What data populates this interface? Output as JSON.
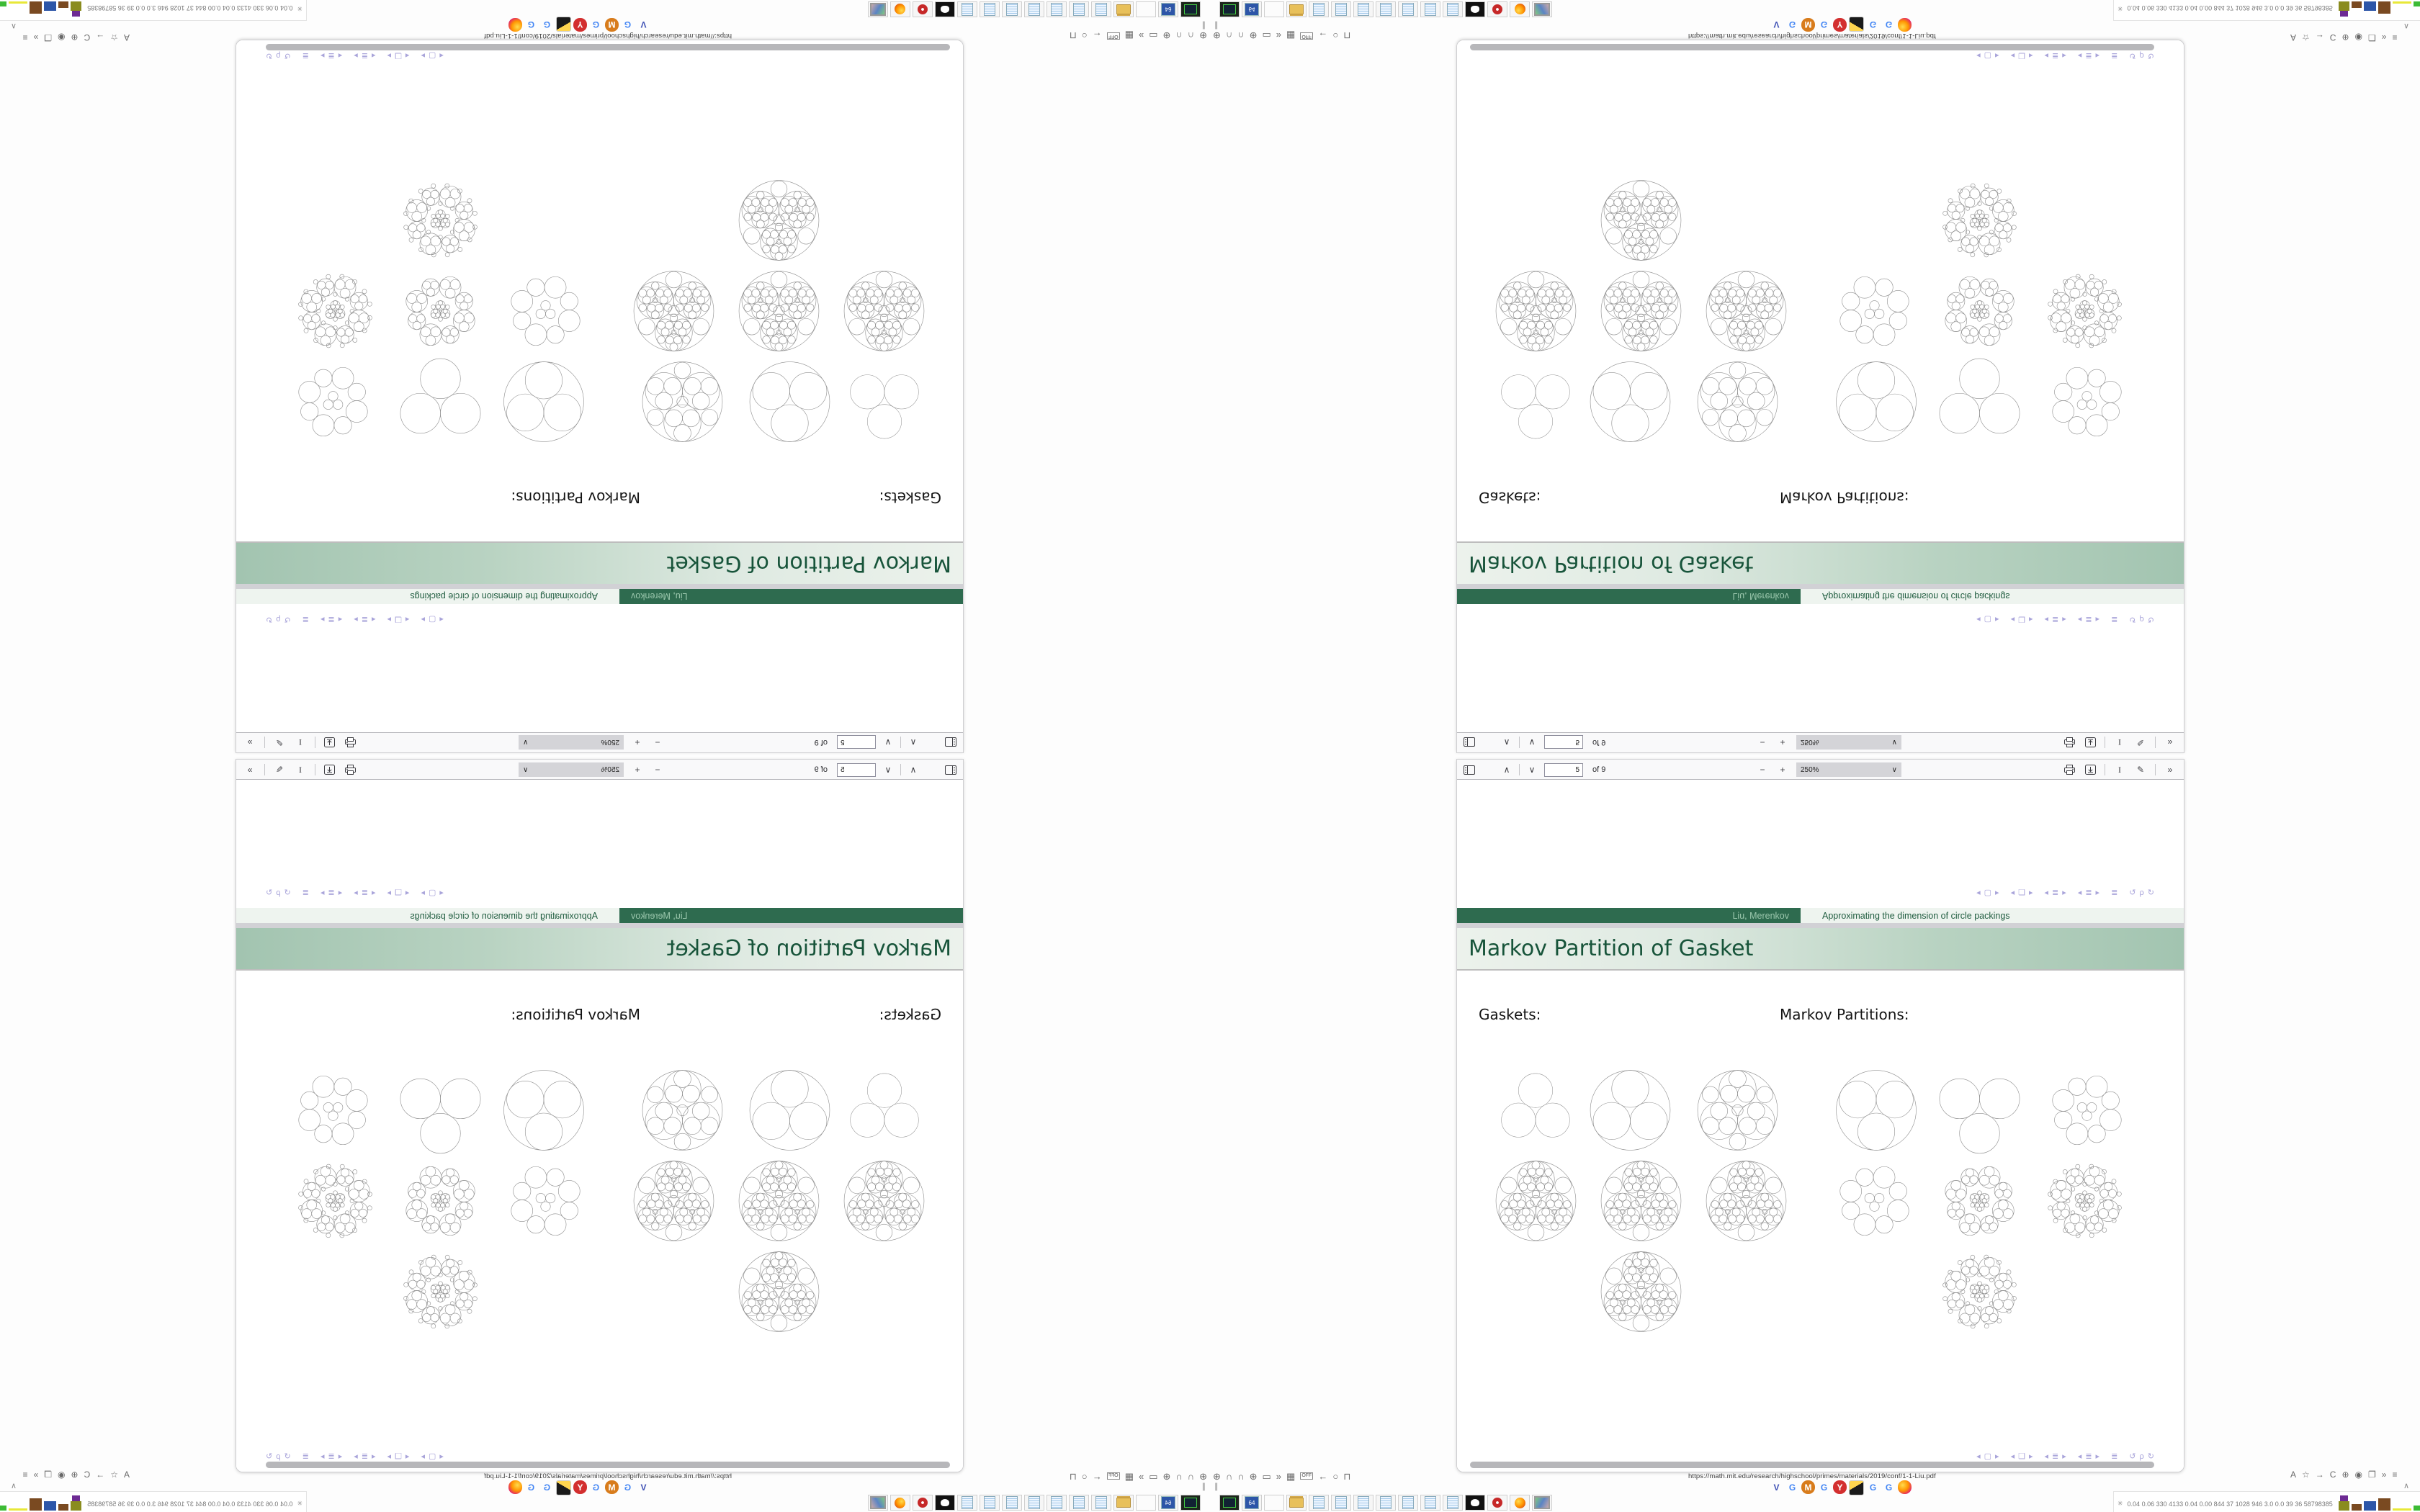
{
  "pdf_viewer": {
    "toolbar": {
      "prev_glyph": "∧",
      "next_glyph": "∨",
      "page_value": "5",
      "page_of": "of 9",
      "zoom_out_glyph": "−",
      "zoom_in_glyph": "+",
      "zoom_value": "250%",
      "zoom_caret": "∨",
      "text_tool_glyph": "I",
      "draw_tool_glyph": "✎",
      "overflow_glyph": "»"
    },
    "nav_symbol_groups": [
      [
        "◂",
        "▢",
        "▸"
      ],
      [
        "◂",
        "❏",
        "▸"
      ],
      [
        "◂",
        "≣",
        "▸"
      ],
      [
        "◂",
        "≣",
        "▸"
      ],
      [
        "≣"
      ],
      [
        "↺",
        "ρ",
        "↻"
      ]
    ],
    "nav_symbol_color": "#a9a4da"
  },
  "slide": {
    "footline_author": "Liu, Merenkov",
    "footline_title": "Approximating the dimension of circle packings",
    "frame_title": "Markov Partition of Gasket",
    "label_left": "Gaskets:",
    "label_right": "Markov Partitions:",
    "figures": {
      "left_rows": [
        [
          "tangent3",
          "outer3",
          "outer3_gaps"
        ],
        [
          "deep",
          "deep",
          "deep"
        ],
        [
          "deep"
        ]
      ],
      "right_rows": [
        [
          "outer3_flip",
          "tangent3_flip",
          "flower1"
        ],
        [
          "flower1",
          "flower2",
          "flower3"
        ],
        [
          "flower3"
        ]
      ]
    },
    "colors": {
      "footline_dark_bg": "#2e6b4f",
      "footline_dark_text": "#9cc8ae",
      "footline_light_bg": "#eef4ef",
      "footline_light_text": "#1f5c3f",
      "headline_text": "#17543a",
      "headline_grad_left": "#ecf2ec",
      "headline_grad_right": "#a2c4b0"
    }
  },
  "statusbar": {
    "url": "https://math.mit.edu/research/highschool/primes/materials/2019/conf/1-1-Liu.pdf",
    "pause_glyph": "∥",
    "scroll_up_glyph": "∧",
    "left_icons": [
      {
        "name": "globe-icon",
        "glyph": "⊕"
      },
      {
        "name": "headphone-left-icon",
        "glyph": "∩"
      },
      {
        "name": "headphone-right-icon",
        "glyph": "∩"
      },
      {
        "name": "globe2-icon",
        "glyph": "⊕"
      },
      {
        "name": "folder-icon",
        "glyph": "▭"
      },
      {
        "name": "chevrons-icon",
        "glyph": "»"
      },
      {
        "name": "trash-icon",
        "glyph": "▦"
      },
      {
        "name": "off-toggle-icon",
        "glyph": "OFF"
      },
      {
        "name": "back-arrow-icon",
        "glyph": "←"
      },
      {
        "name": "pin-icon",
        "glyph": "○"
      },
      {
        "name": "lock-icon",
        "glyph": "⊓"
      }
    ],
    "right_icons": [
      {
        "name": "translate-icon",
        "glyph": "A"
      },
      {
        "name": "bookmark-star-icon",
        "glyph": "☆"
      },
      {
        "name": "forward-arrow-icon",
        "glyph": "→"
      },
      {
        "name": "reload-icon",
        "glyph": "C"
      },
      {
        "name": "globe-icon",
        "glyph": "⊕"
      },
      {
        "name": "shield-icon",
        "glyph": "◉"
      },
      {
        "name": "copy-page-icon",
        "glyph": "❐"
      },
      {
        "name": "overflow-icon",
        "glyph": "»"
      },
      {
        "name": "menu-icon",
        "glyph": "≡"
      }
    ]
  },
  "tab_favicons": [
    {
      "name": "blue-v-favicon",
      "glyph": "V",
      "fg": "#3f51b5",
      "bg": "transparent"
    },
    {
      "name": "google-favicon",
      "glyph": "G",
      "fg": "#4285f4",
      "bg": "transparent"
    },
    {
      "name": "orange-m-favicon",
      "glyph": "M",
      "fg": "#fff",
      "bg": "#d87c1c"
    },
    {
      "name": "google-favicon",
      "glyph": "G",
      "fg": "#4285f4",
      "bg": "transparent"
    },
    {
      "name": "red-y-favicon",
      "glyph": "Y",
      "fg": "#fff",
      "bg": "#d32f2f"
    },
    {
      "name": "photo-favicon",
      "glyph": "",
      "fg": "#222",
      "bg": "photo"
    },
    {
      "name": "google-favicon",
      "glyph": "G",
      "fg": "#4285f4",
      "bg": "transparent"
    },
    {
      "name": "google-favicon",
      "glyph": "G",
      "fg": "#4285f4",
      "bg": "transparent"
    },
    {
      "name": "firefox-favicon",
      "glyph": "",
      "fg": "#fff",
      "bg": "firefox"
    }
  ],
  "taskbar_apps": [
    "terminal",
    "c64",
    "blank",
    "folder",
    "notepad",
    "notepad",
    "notepad",
    "notepad",
    "notepad",
    "notepad",
    "notepad",
    "gimp",
    "redapp",
    "firefox",
    "display"
  ],
  "tray": {
    "person_glyph": "✳",
    "stats": "0.04 0.06  330  4133 0.04 0.00  844   37   1028 946   3.0   0.0   39   36   58798385",
    "blocks": [
      {
        "type": "stack",
        "top_color": "#6d2a93",
        "bottom_color": "#8a8c1e",
        "w": 15,
        "top_h": 8,
        "bottom_h": 13
      },
      {
        "type": "solid",
        "color": "#7a4a21",
        "w": 14,
        "h": 9
      },
      {
        "type": "solid",
        "color": "#2d56a8",
        "w": 17,
        "h": 13
      },
      {
        "type": "solid",
        "color": "#7a4a21",
        "w": 17,
        "h": 17
      },
      {
        "type": "solid",
        "color": "#e8e838",
        "w": 26,
        "h": 3
      },
      {
        "type": "solid",
        "color": "#3dbb35",
        "w": 12,
        "h": 7
      },
      {
        "type": "rainbow",
        "w": 10,
        "h": 8
      }
    ]
  }
}
